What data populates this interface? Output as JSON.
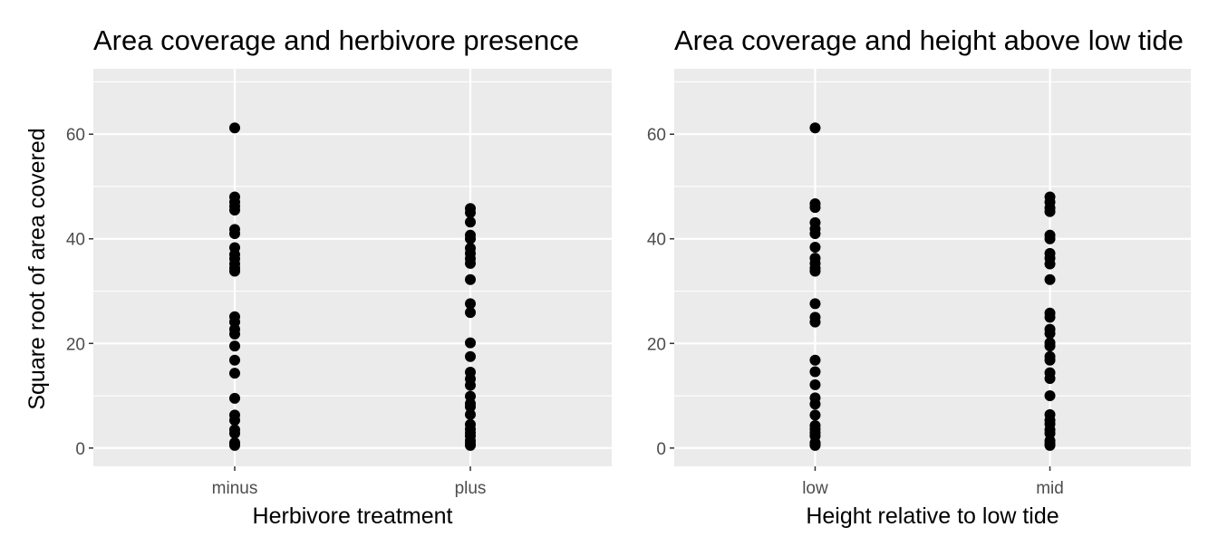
{
  "y_axis_title": "Square root of area covered",
  "chart_data": [
    {
      "type": "scatter",
      "title": "Area coverage and herbivore presence",
      "xlabel": "Herbivore treatment",
      "ylabel": "Square root of area covered",
      "categories": [
        "minus",
        "plus"
      ],
      "ylim": [
        -3.5,
        72.5
      ],
      "yticks": [
        0,
        20,
        40,
        60
      ],
      "grid": true,
      "point_color": "#000000",
      "series": [
        {
          "category": "minus",
          "values": [
            61.2,
            48.0,
            47.0,
            46.2,
            45.5,
            41.8,
            41.0,
            38.3,
            37.0,
            36.2,
            35.2,
            34.4,
            33.8,
            25.1,
            24.1,
            22.7,
            21.8,
            19.5,
            16.8,
            14.3,
            9.5,
            6.3,
            5.3,
            3.5,
            2.8,
            1.0,
            0.8,
            0.5
          ]
        },
        {
          "category": "plus",
          "values": [
            45.8,
            45.0,
            43.2,
            40.7,
            40.0,
            38.2,
            37.2,
            36.2,
            35.3,
            32.2,
            27.6,
            25.9,
            20.1,
            17.5,
            14.5,
            13.2,
            12.0,
            9.9,
            8.5,
            7.9,
            6.4,
            4.5,
            3.6,
            2.9,
            2.3,
            1.4,
            0.8,
            0.5
          ]
        }
      ]
    },
    {
      "type": "scatter",
      "title": "Area coverage and height above low tide",
      "xlabel": "Height relative to low tide",
      "ylabel": "",
      "categories": [
        "low",
        "mid"
      ],
      "ylim": [
        -3.5,
        72.5
      ],
      "yticks": [
        0,
        20,
        40,
        60
      ],
      "grid": true,
      "point_color": "#000000",
      "series": [
        {
          "category": "low",
          "values": [
            61.2,
            46.7,
            46.0,
            43.1,
            41.9,
            41.0,
            38.4,
            36.3,
            35.3,
            34.4,
            33.8,
            27.6,
            25.0,
            24.1,
            16.8,
            14.6,
            12.1,
            9.6,
            8.4,
            6.3,
            4.3,
            3.6,
            2.9,
            2.3,
            1.0,
            0.8,
            0.5
          ]
        },
        {
          "category": "mid",
          "values": [
            48.0,
            47.0,
            45.9,
            45.2,
            40.7,
            40.0,
            37.2,
            36.3,
            35.2,
            32.2,
            25.8,
            25.0,
            22.7,
            21.9,
            20.1,
            19.5,
            17.5,
            16.8,
            14.4,
            13.3,
            10.0,
            6.4,
            5.3,
            4.6,
            3.5,
            2.8,
            1.4,
            0.8,
            0.5
          ]
        }
      ]
    }
  ]
}
